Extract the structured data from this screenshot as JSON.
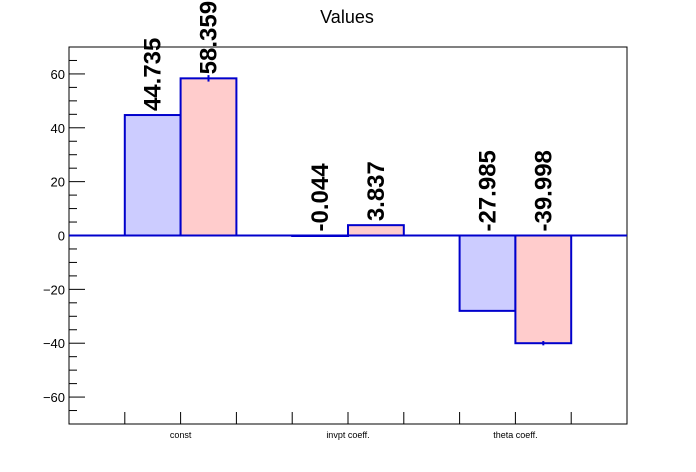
{
  "chart_data": {
    "type": "bar",
    "title": "Values",
    "xlabel": "",
    "ylabel": "",
    "ylim": [
      -70,
      70
    ],
    "categories": [
      "const",
      "invpt coeff.",
      "theta coeff."
    ],
    "series": [
      {
        "values": [
          44.735,
          -0.044,
          -27.985
        ],
        "labels": [
          "44.735",
          "-0.044",
          "-27.985"
        ],
        "errors": [
          0,
          0,
          0
        ],
        "fill": "#ccccff"
      },
      {
        "values": [
          58.359,
          3.837,
          -39.998
        ],
        "labels": [
          "58.359",
          "3.837",
          "-39.998"
        ],
        "errors": [
          1.2,
          0,
          0.8
        ],
        "fill": "#ffcccc"
      }
    ],
    "yticks": [
      -60,
      -40,
      -20,
      0,
      20,
      40,
      60
    ],
    "ytick_labels": [
      "−60",
      "−40",
      "−20",
      "0",
      "20",
      "40",
      "60"
    ],
    "grid": false,
    "colors": {
      "bar_edge": "#0000cc",
      "axis": "#000000",
      "zero_line": "#0000cc"
    }
  }
}
